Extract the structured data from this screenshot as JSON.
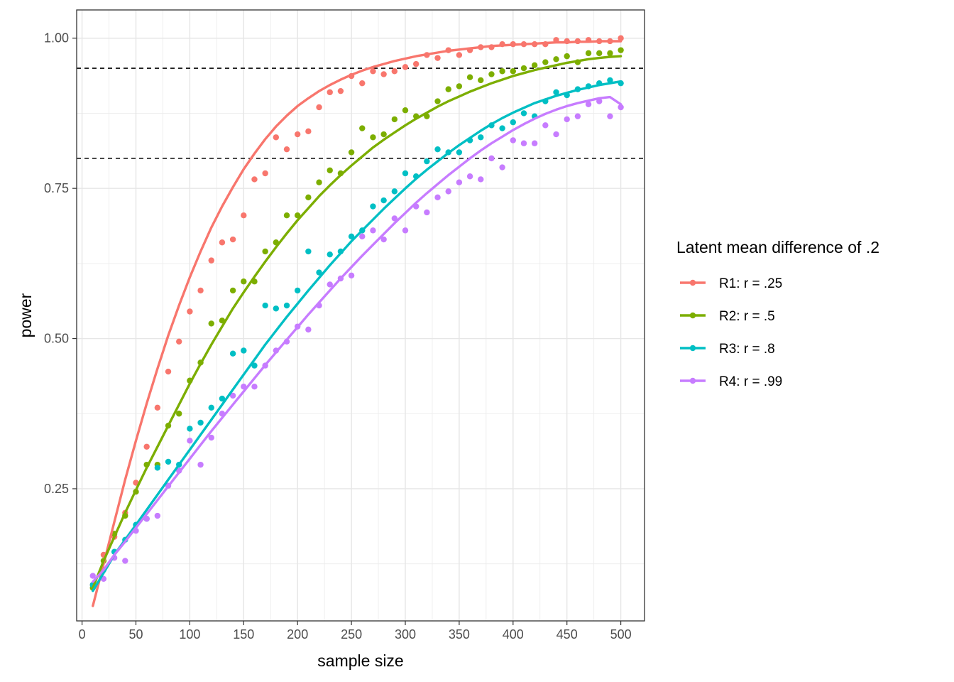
{
  "chart_data": {
    "type": "scatter",
    "title": "",
    "xlabel": "sample size",
    "ylabel": "power",
    "xlim": [
      -5,
      522
    ],
    "ylim": [
      0.03,
      1.047
    ],
    "x_ticks": [
      0,
      50,
      100,
      150,
      200,
      250,
      300,
      350,
      400,
      450,
      500
    ],
    "x_tick_labels": [
      "0",
      "50",
      "100",
      "150",
      "200",
      "250",
      "300",
      "350",
      "400",
      "450",
      "500"
    ],
    "y_ticks": [
      0.25,
      0.5,
      0.75,
      1.0
    ],
    "y_tick_labels": [
      "0.25",
      "0.50",
      "0.75",
      "1.00"
    ],
    "grid": true,
    "reference_lines": [
      0.8,
      0.95
    ],
    "legend": {
      "title": "Latent mean difference of .2",
      "position": "right"
    },
    "x": [
      10,
      20,
      30,
      40,
      50,
      60,
      70,
      80,
      90,
      100,
      110,
      120,
      130,
      140,
      150,
      160,
      170,
      180,
      190,
      200,
      210,
      220,
      230,
      240,
      250,
      260,
      270,
      280,
      290,
      300,
      310,
      320,
      330,
      340,
      350,
      360,
      370,
      380,
      390,
      400,
      410,
      420,
      430,
      440,
      450,
      460,
      470,
      480,
      490,
      500
    ],
    "series": [
      {
        "name": "R1: r = .25",
        "color": "#F8766D",
        "values": [
          0.09,
          0.14,
          0.17,
          0.21,
          0.26,
          0.32,
          0.385,
          0.445,
          0.495,
          0.545,
          0.58,
          0.63,
          0.66,
          0.665,
          0.705,
          0.765,
          0.775,
          0.835,
          0.815,
          0.84,
          0.845,
          0.885,
          0.91,
          0.912,
          0.937,
          0.925,
          0.945,
          0.94,
          0.945,
          0.952,
          0.957,
          0.972,
          0.967,
          0.98,
          0.972,
          0.98,
          0.985,
          0.985,
          0.99,
          0.99,
          0.99,
          0.99,
          0.99,
          0.997,
          0.995,
          0.995,
          0.997,
          0.995,
          0.995,
          1.0
        ],
        "fit": [
          0.055,
          0.125,
          0.195,
          0.265,
          0.33,
          0.392,
          0.45,
          0.505,
          0.555,
          0.602,
          0.645,
          0.685,
          0.72,
          0.752,
          0.782,
          0.808,
          0.832,
          0.853,
          0.871,
          0.887,
          0.9,
          0.912,
          0.922,
          0.931,
          0.939,
          0.946,
          0.952,
          0.957,
          0.962,
          0.966,
          0.97,
          0.973,
          0.976,
          0.979,
          0.981,
          0.983,
          0.985,
          0.987,
          0.988,
          0.989,
          0.99,
          0.991,
          0.992,
          0.993,
          0.993,
          0.994,
          0.994,
          0.995,
          0.995,
          0.995
        ]
      },
      {
        "name": "R2: r = .5",
        "color": "#7CAE00",
        "values": [
          0.085,
          0.13,
          0.175,
          0.205,
          0.245,
          0.29,
          0.29,
          0.355,
          0.375,
          0.43,
          0.46,
          0.525,
          0.53,
          0.58,
          0.595,
          0.595,
          0.645,
          0.66,
          0.705,
          0.705,
          0.735,
          0.76,
          0.78,
          0.775,
          0.81,
          0.85,
          0.835,
          0.84,
          0.865,
          0.88,
          0.87,
          0.87,
          0.895,
          0.915,
          0.92,
          0.935,
          0.93,
          0.94,
          0.945,
          0.945,
          0.95,
          0.955,
          0.96,
          0.965,
          0.97,
          0.96,
          0.975,
          0.975,
          0.975,
          0.98
        ],
        "fit": [
          0.085,
          0.13,
          0.17,
          0.21,
          0.248,
          0.285,
          0.32,
          0.355,
          0.39,
          0.425,
          0.458,
          0.49,
          0.52,
          0.55,
          0.577,
          0.603,
          0.628,
          0.652,
          0.675,
          0.697,
          0.717,
          0.737,
          0.755,
          0.772,
          0.788,
          0.803,
          0.818,
          0.831,
          0.843,
          0.855,
          0.866,
          0.876,
          0.886,
          0.895,
          0.903,
          0.911,
          0.918,
          0.925,
          0.931,
          0.937,
          0.942,
          0.947,
          0.951,
          0.955,
          0.959,
          0.962,
          0.965,
          0.967,
          0.969,
          0.97
        ]
      },
      {
        "name": "R3: r = .8",
        "color": "#00BFC4",
        "values": [
          0.09,
          0.115,
          0.145,
          0.165,
          0.19,
          0.2,
          0.285,
          0.295,
          0.29,
          0.35,
          0.36,
          0.385,
          0.4,
          0.475,
          0.48,
          0.455,
          0.555,
          0.55,
          0.555,
          0.58,
          0.645,
          0.61,
          0.64,
          0.645,
          0.67,
          0.68,
          0.72,
          0.73,
          0.745,
          0.775,
          0.77,
          0.795,
          0.815,
          0.81,
          0.81,
          0.83,
          0.835,
          0.855,
          0.85,
          0.86,
          0.875,
          0.87,
          0.895,
          0.91,
          0.905,
          0.915,
          0.92,
          0.925,
          0.93,
          0.925
        ],
        "fit": [
          0.08,
          0.11,
          0.14,
          0.165,
          0.19,
          0.215,
          0.24,
          0.265,
          0.29,
          0.315,
          0.34,
          0.365,
          0.39,
          0.415,
          0.44,
          0.465,
          0.49,
          0.513,
          0.536,
          0.558,
          0.58,
          0.601,
          0.622,
          0.642,
          0.662,
          0.68,
          0.698,
          0.716,
          0.733,
          0.75,
          0.766,
          0.781,
          0.795,
          0.809,
          0.822,
          0.834,
          0.846,
          0.857,
          0.867,
          0.876,
          0.884,
          0.892,
          0.898,
          0.904,
          0.909,
          0.914,
          0.918,
          0.922,
          0.925,
          0.928
        ]
      },
      {
        "name": "R4: r = .99",
        "color": "#C77CFF",
        "values": [
          0.105,
          0.1,
          0.135,
          0.13,
          0.18,
          0.2,
          0.205,
          0.255,
          0.28,
          0.33,
          0.29,
          0.335,
          0.375,
          0.405,
          0.42,
          0.42,
          0.455,
          0.48,
          0.495,
          0.52,
          0.515,
          0.555,
          0.59,
          0.6,
          0.605,
          0.67,
          0.68,
          0.665,
          0.7,
          0.68,
          0.72,
          0.71,
          0.735,
          0.745,
          0.76,
          0.77,
          0.765,
          0.8,
          0.785,
          0.83,
          0.825,
          0.825,
          0.855,
          0.84,
          0.865,
          0.87,
          0.89,
          0.895,
          0.87,
          0.885
        ],
        "fit": [
          0.095,
          0.115,
          0.14,
          0.162,
          0.185,
          0.208,
          0.231,
          0.254,
          0.277,
          0.3,
          0.323,
          0.346,
          0.368,
          0.39,
          0.412,
          0.434,
          0.456,
          0.477,
          0.498,
          0.519,
          0.54,
          0.56,
          0.58,
          0.6,
          0.619,
          0.638,
          0.656,
          0.674,
          0.692,
          0.709,
          0.726,
          0.742,
          0.757,
          0.772,
          0.786,
          0.8,
          0.813,
          0.825,
          0.836,
          0.847,
          0.857,
          0.866,
          0.874,
          0.881,
          0.887,
          0.892,
          0.896,
          0.9,
          0.902,
          0.89
        ]
      }
    ]
  }
}
